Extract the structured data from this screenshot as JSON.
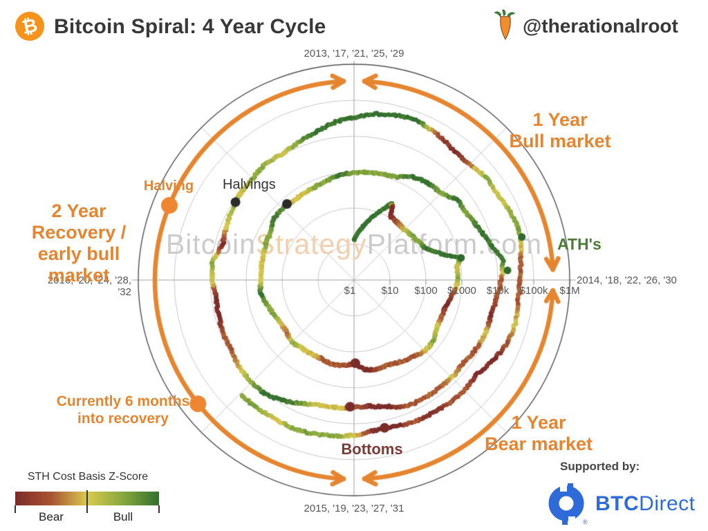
{
  "header": {
    "title": "Bitcoin Spiral: 4 Year Cycle",
    "handle": "@therationalroot",
    "logo_symbol": "₿"
  },
  "watermark": {
    "part1": "Bitcoin",
    "part2": "Strategy",
    "part3": "Platform.com"
  },
  "chart_data": {
    "type": "polar_spiral",
    "title": "Bitcoin Spiral: 4 Year Cycle",
    "angle_axis": {
      "years_per_revolution": 4,
      "top": "2013, '17, '21, '25, '29",
      "right": "2014, '18, '22, '26, '30",
      "bottom": "2015, '19, '23, '27, '31",
      "left": "2016, '20, '24, '28, '32"
    },
    "radial_axis": {
      "scale": "log10 USD price",
      "ticks": [
        "$1",
        "$10",
        "$100",
        "$1000",
        "$10k",
        "$100k",
        "$1M"
      ]
    },
    "series_name": "BTC price colored by STH Cost Basis Z-Score",
    "points_format": "[decimal_year, price_usd, z_score(-2 bear .. +2 bull)]",
    "points": [
      [
        2013.0,
        13,
        2
      ],
      [
        2013.08,
        25,
        2
      ],
      [
        2013.17,
        60,
        2
      ],
      [
        2013.25,
        135,
        2
      ],
      [
        2013.29,
        230,
        2
      ],
      [
        2013.31,
        190,
        -2
      ],
      [
        2013.33,
        110,
        -2
      ],
      [
        2013.42,
        100,
        -1
      ],
      [
        2013.5,
        95,
        0
      ],
      [
        2013.58,
        105,
        1
      ],
      [
        2013.67,
        125,
        1
      ],
      [
        2013.75,
        160,
        2
      ],
      [
        2013.83,
        420,
        2
      ],
      [
        2013.87,
        1050,
        2
      ],
      [
        2013.92,
        760,
        0
      ],
      [
        2014.0,
        800,
        1
      ],
      [
        2014.08,
        620,
        -1
      ],
      [
        2014.17,
        450,
        -2
      ],
      [
        2014.25,
        440,
        -1
      ],
      [
        2014.33,
        450,
        0
      ],
      [
        2014.42,
        600,
        1
      ],
      [
        2014.5,
        620,
        0
      ],
      [
        2014.58,
        500,
        -1
      ],
      [
        2014.67,
        420,
        -1
      ],
      [
        2014.75,
        350,
        -1
      ],
      [
        2014.83,
        370,
        -1
      ],
      [
        2014.92,
        330,
        -2
      ],
      [
        2015.0,
        210,
        -2
      ],
      [
        2015.08,
        245,
        -1
      ],
      [
        2015.17,
        265,
        -1
      ],
      [
        2015.25,
        230,
        -1
      ],
      [
        2015.33,
        237,
        0
      ],
      [
        2015.42,
        240,
        0
      ],
      [
        2015.5,
        280,
        1
      ],
      [
        2015.58,
        230,
        -1
      ],
      [
        2015.67,
        235,
        0
      ],
      [
        2015.75,
        270,
        1
      ],
      [
        2015.83,
        330,
        1
      ],
      [
        2015.92,
        430,
        2
      ],
      [
        2016.0,
        385,
        0
      ],
      [
        2016.08,
        400,
        0
      ],
      [
        2016.17,
        415,
        0
      ],
      [
        2016.25,
        450,
        1
      ],
      [
        2016.33,
        460,
        1
      ],
      [
        2016.42,
        640,
        2
      ],
      [
        2016.54,
        660,
        1
      ],
      [
        2016.58,
        580,
        0
      ],
      [
        2016.67,
        605,
        0
      ],
      [
        2016.75,
        640,
        1
      ],
      [
        2016.83,
        730,
        1
      ],
      [
        2016.92,
        900,
        2
      ],
      [
        2017.0,
        950,
        1
      ],
      [
        2017.08,
        1050,
        1
      ],
      [
        2017.17,
        1100,
        1
      ],
      [
        2017.25,
        1250,
        1
      ],
      [
        2017.33,
        2000,
        2
      ],
      [
        2017.42,
        2500,
        2
      ],
      [
        2017.5,
        2600,
        1
      ],
      [
        2017.58,
        4300,
        2
      ],
      [
        2017.67,
        4300,
        1
      ],
      [
        2017.75,
        5700,
        2
      ],
      [
        2017.83,
        8000,
        2
      ],
      [
        2017.92,
        15000,
        2
      ],
      [
        2018.0,
        12500,
        -1
      ],
      [
        2018.08,
        9800,
        -1
      ],
      [
        2018.17,
        8500,
        -2
      ],
      [
        2018.25,
        8900,
        0
      ],
      [
        2018.33,
        7800,
        -1
      ],
      [
        2018.42,
        6500,
        -1
      ],
      [
        2018.5,
        7000,
        0
      ],
      [
        2018.58,
        6700,
        -1
      ],
      [
        2018.67,
        6600,
        -1
      ],
      [
        2018.75,
        6400,
        -1
      ],
      [
        2018.83,
        4500,
        -2
      ],
      [
        2018.92,
        3400,
        -2
      ],
      [
        2019.0,
        3500,
        -1
      ],
      [
        2019.08,
        3800,
        0
      ],
      [
        2019.17,
        4000,
        0
      ],
      [
        2019.25,
        5200,
        1
      ],
      [
        2019.33,
        7500,
        2
      ],
      [
        2019.42,
        10500,
        2
      ],
      [
        2019.5,
        10500,
        1
      ],
      [
        2019.58,
        10200,
        0
      ],
      [
        2019.67,
        8500,
        -1
      ],
      [
        2019.75,
        8500,
        -1
      ],
      [
        2019.83,
        7800,
        -2
      ],
      [
        2019.92,
        7200,
        -2
      ],
      [
        2020.0,
        8500,
        0
      ],
      [
        2020.08,
        9500,
        1
      ],
      [
        2020.17,
        6000,
        -2
      ],
      [
        2020.25,
        7000,
        0
      ],
      [
        2020.37,
        8800,
        1
      ],
      [
        2020.42,
        9400,
        0
      ],
      [
        2020.5,
        9700,
        1
      ],
      [
        2020.58,
        11500,
        1
      ],
      [
        2020.67,
        10800,
        0
      ],
      [
        2020.75,
        13000,
        1
      ],
      [
        2020.83,
        17000,
        2
      ],
      [
        2020.92,
        26000,
        2
      ],
      [
        2021.0,
        33000,
        2
      ],
      [
        2021.08,
        45000,
        2
      ],
      [
        2021.17,
        55000,
        2
      ],
      [
        2021.25,
        58000,
        2
      ],
      [
        2021.33,
        46000,
        -1
      ],
      [
        2021.42,
        35000,
        -2
      ],
      [
        2021.5,
        34000,
        -1
      ],
      [
        2021.58,
        45000,
        1
      ],
      [
        2021.67,
        45000,
        0
      ],
      [
        2021.75,
        57000,
        1
      ],
      [
        2021.83,
        62000,
        1
      ],
      [
        2021.92,
        47000,
        -1
      ],
      [
        2022.0,
        41000,
        -1
      ],
      [
        2022.08,
        40000,
        -1
      ],
      [
        2022.17,
        44000,
        0
      ],
      [
        2022.25,
        40000,
        -1
      ],
      [
        2022.33,
        30000,
        -2
      ],
      [
        2022.42,
        20000,
        -2
      ],
      [
        2022.5,
        22000,
        -1
      ],
      [
        2022.58,
        21500,
        -1
      ],
      [
        2022.67,
        19500,
        -2
      ],
      [
        2022.75,
        19500,
        -1
      ],
      [
        2022.83,
        16500,
        -2
      ],
      [
        2022.92,
        16800,
        -2
      ],
      [
        2023.0,
        21000,
        0
      ],
      [
        2023.08,
        23000,
        1
      ],
      [
        2023.17,
        27000,
        1
      ],
      [
        2023.25,
        29000,
        1
      ],
      [
        2023.33,
        27500,
        0
      ],
      [
        2023.42,
        29000,
        1
      ],
      [
        2023.5,
        30000,
        1
      ]
    ],
    "halvings": {
      "label": "Halvings",
      "events": [
        [
          2016.54,
          660
        ],
        [
          2020.37,
          8800
        ]
      ]
    },
    "bottoms": {
      "label": "Bottoms",
      "events": [
        [
          2014.99,
          205
        ],
        [
          2019.02,
          3350
        ],
        [
          2022.87,
          15800
        ]
      ]
    },
    "aths": {
      "label": "ATH's",
      "events": [
        [
          2013.87,
          1100
        ],
        [
          2017.96,
          19000
        ],
        [
          2021.84,
          66000
        ]
      ]
    },
    "cycle_arcs": [
      {
        "label": "1 Year Bull market",
        "start_deg": 3,
        "end_deg": 87
      },
      {
        "label": "1 Year Bear market",
        "start_deg": 93,
        "end_deg": 177
      },
      {
        "label": "2 Year Recovery / early bull market",
        "start_deg": 183,
        "end_deg": 357
      }
    ]
  },
  "annotations": {
    "bull": {
      "line1": "1 Year",
      "line2": "Bull market"
    },
    "bear": {
      "line1": "1 Year",
      "line2": "Bear market"
    },
    "recovery": {
      "line1": "2 Year",
      "line2": "Recovery /",
      "line3": "early bull market"
    },
    "current": {
      "line1": "Currently 6 months",
      "line2": "into recovery",
      "cycle_position_deg": 231.6
    },
    "halving_marker": {
      "label": "Halving",
      "cycle_position_deg": 292
    },
    "halvings_label": "Halvings",
    "aths_label": "ATH's",
    "bottoms_label": "Bottoms"
  },
  "legend": {
    "title": "STH Cost Basis Z-Score",
    "bear_label": "Bear",
    "bull_label": "Bull"
  },
  "sponsor": {
    "label": "Supported by:",
    "brand_bold": "BTC",
    "brand_light": "Direct"
  },
  "colors": {
    "orange": "#e5852f",
    "logo_orange": "#f7931a",
    "marker_orange": "#ee8530",
    "title_text": "#383838",
    "axis_text": "#555555",
    "grid": "#c7c7c7",
    "grid_axis": "#9e9e9e",
    "outer_ring": "#4f4f4f",
    "green_label": "#4e7c38",
    "red_label": "#7b3a36",
    "halving_dot": "#2b2b2b",
    "bottom_dot": "#7a2d28",
    "ath_dot": "#2f6a2e",
    "watermark_gray": "#cbcbcb",
    "watermark_accent": "#f2cfae",
    "btcdirect_blue": "#2e6bd8",
    "z_colorscale": [
      "#7c2a28",
      "#a85432",
      "#d9c94f",
      "#86a83e",
      "#33702e"
    ]
  }
}
